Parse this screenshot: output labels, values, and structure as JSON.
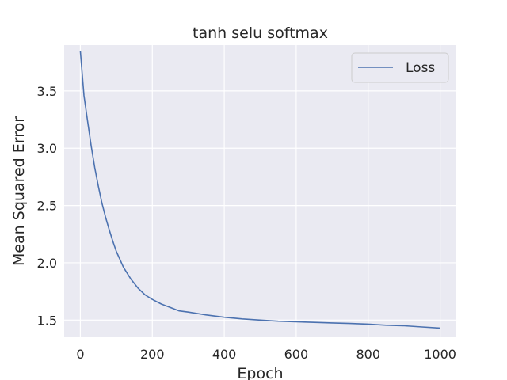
{
  "chart_data": {
    "type": "line",
    "title": "tanh selu softmax",
    "xlabel": "Epoch",
    "ylabel": "Mean Squared Error",
    "xlim": [
      -45,
      1045
    ],
    "ylim": [
      1.35,
      3.9
    ],
    "xticks": [
      0,
      200,
      400,
      600,
      800,
      1000
    ],
    "yticks": [
      1.5,
      2.0,
      2.5,
      3.0,
      3.5
    ],
    "xtick_labels": [
      "0",
      "200",
      "400",
      "600",
      "800",
      "1000"
    ],
    "ytick_labels": [
      "1.5",
      "2.0",
      "2.5",
      "3.0",
      "3.5"
    ],
    "grid": true,
    "legend_position": "top-right",
    "series": [
      {
        "name": "Loss",
        "color": "#4c72b0",
        "x": [
          0,
          10,
          20,
          30,
          40,
          50,
          60,
          70,
          80,
          90,
          100,
          120,
          140,
          160,
          180,
          200,
          225,
          250,
          275,
          300,
          350,
          400,
          450,
          500,
          550,
          600,
          650,
          700,
          750,
          800,
          850,
          900,
          950,
          1000
        ],
        "y": [
          3.85,
          3.46,
          3.24,
          3.02,
          2.83,
          2.67,
          2.52,
          2.4,
          2.29,
          2.19,
          2.1,
          1.96,
          1.86,
          1.78,
          1.72,
          1.68,
          1.64,
          1.61,
          1.58,
          1.57,
          1.545,
          1.525,
          1.51,
          1.5,
          1.49,
          1.485,
          1.48,
          1.475,
          1.47,
          1.465,
          1.455,
          1.45,
          1.44,
          1.43
        ]
      }
    ]
  }
}
